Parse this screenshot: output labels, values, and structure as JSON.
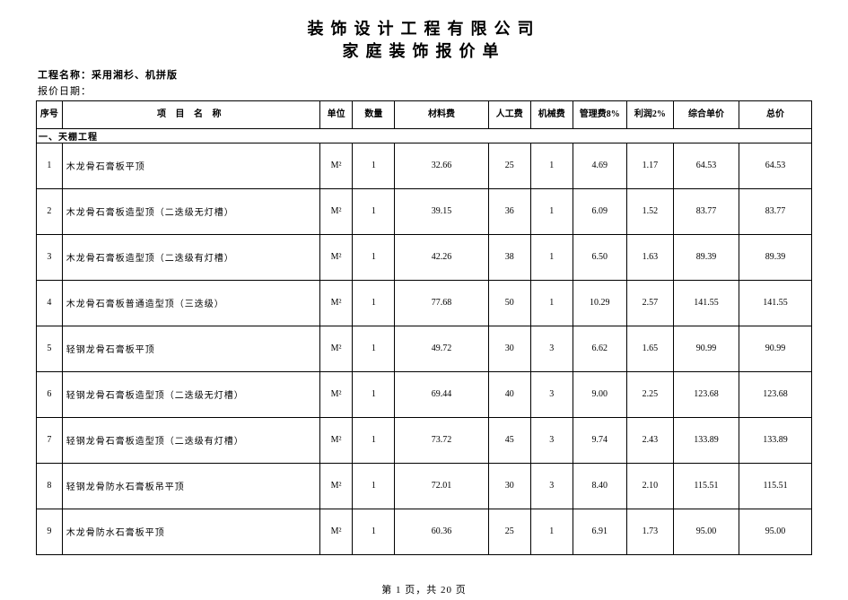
{
  "title_line1": "装饰设计工程有限公司",
  "title_line2": "家庭装饰报价单",
  "project_label": "工程名称：采用湘杉、机拼版",
  "date_label": "报价日期：",
  "columns": {
    "seq": "序号",
    "name": "项 目 名 称",
    "unit": "单位",
    "qty": "数量",
    "material": "材料费",
    "labor": "人工费",
    "machine": "机械费",
    "mgmt": "管理费8%",
    "profit": "利润2%",
    "unit_price": "综合单价",
    "total": "总价"
  },
  "section_title": "一、天棚工程",
  "unit_symbol": "M²",
  "rows": [
    {
      "seq": "1",
      "name": "木龙骨石膏板平顶",
      "qty": "1",
      "material": "32.66",
      "labor": "25",
      "machine": "1",
      "mgmt": "4.69",
      "profit": "1.17",
      "uprice": "64.53",
      "total": "64.53"
    },
    {
      "seq": "2",
      "name": "木龙骨石膏板造型顶（二迭级无灯槽）",
      "qty": "1",
      "material": "39.15",
      "labor": "36",
      "machine": "1",
      "mgmt": "6.09",
      "profit": "1.52",
      "uprice": "83.77",
      "total": "83.77"
    },
    {
      "seq": "3",
      "name": "木龙骨石膏板造型顶（二迭级有灯槽）",
      "qty": "1",
      "material": "42.26",
      "labor": "38",
      "machine": "1",
      "mgmt": "6.50",
      "profit": "1.63",
      "uprice": "89.39",
      "total": "89.39"
    },
    {
      "seq": "4",
      "name": "木龙骨石膏板普通造型顶（三迭级）",
      "qty": "1",
      "material": "77.68",
      "labor": "50",
      "machine": "1",
      "mgmt": "10.29",
      "profit": "2.57",
      "uprice": "141.55",
      "total": "141.55"
    },
    {
      "seq": "5",
      "name": "轻钢龙骨石膏板平顶",
      "qty": "1",
      "material": "49.72",
      "labor": "30",
      "machine": "3",
      "mgmt": "6.62",
      "profit": "1.65",
      "uprice": "90.99",
      "total": "90.99"
    },
    {
      "seq": "6",
      "name": "轻钢龙骨石膏板造型顶（二迭级无灯槽）",
      "qty": "1",
      "material": "69.44",
      "labor": "40",
      "machine": "3",
      "mgmt": "9.00",
      "profit": "2.25",
      "uprice": "123.68",
      "total": "123.68"
    },
    {
      "seq": "7",
      "name": "轻钢龙骨石膏板造型顶（二迭级有灯槽）",
      "qty": "1",
      "material": "73.72",
      "labor": "45",
      "machine": "3",
      "mgmt": "9.74",
      "profit": "2.43",
      "uprice": "133.89",
      "total": "133.89"
    },
    {
      "seq": "8",
      "name": "轻钢龙骨防水石膏板吊平顶",
      "qty": "1",
      "material": "72.01",
      "labor": "30",
      "machine": "3",
      "mgmt": "8.40",
      "profit": "2.10",
      "uprice": "115.51",
      "total": "115.51"
    },
    {
      "seq": "9",
      "name": "木龙骨防水石膏板平顶",
      "qty": "1",
      "material": "60.36",
      "labor": "25",
      "machine": "1",
      "mgmt": "6.91",
      "profit": "1.73",
      "uprice": "95.00",
      "total": "95.00"
    }
  ],
  "footer": "第 1 页，共 20 页"
}
